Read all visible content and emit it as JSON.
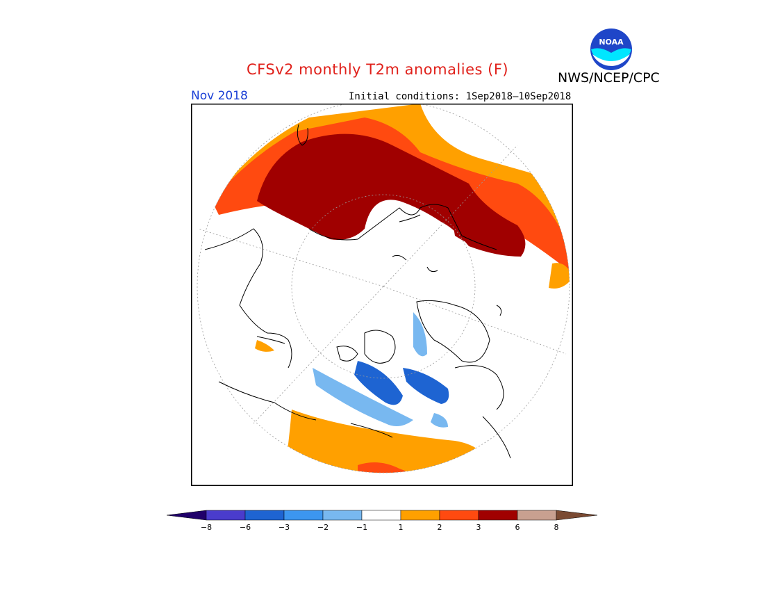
{
  "header": {
    "title": "CFSv2 monthly T2m anomalies (F)",
    "agency": "NWS/NCEP/CPC",
    "logo_text": "NOAA",
    "month": "Nov 2018",
    "initial_conditions": "Initial conditions: 1Sep2018–10Sep2018"
  },
  "legend": {
    "ticks": [
      "−8",
      "−6",
      "−3",
      "−2",
      "−1",
      "1",
      "2",
      "3",
      "6",
      "8"
    ],
    "colors": {
      "lt_-8": "#20006a",
      "-8_-6": "#4a3ccc",
      "-6_-3": "#1e64d2",
      "-3_-2": "#3c96f0",
      "-2_-1": "#78b8f0",
      "-1_1": "#ffffff",
      "1_2": "#ffa000",
      "2_3": "#ff4a10",
      "3_6": "#a00000",
      "6_8": "#c8a090",
      "gt_8": "#7a4a32"
    }
  },
  "colors": {
    "title": "#e0201a",
    "month": "#1a3fd6",
    "coast": "#000000",
    "grid": "#9a9a9a"
  }
}
